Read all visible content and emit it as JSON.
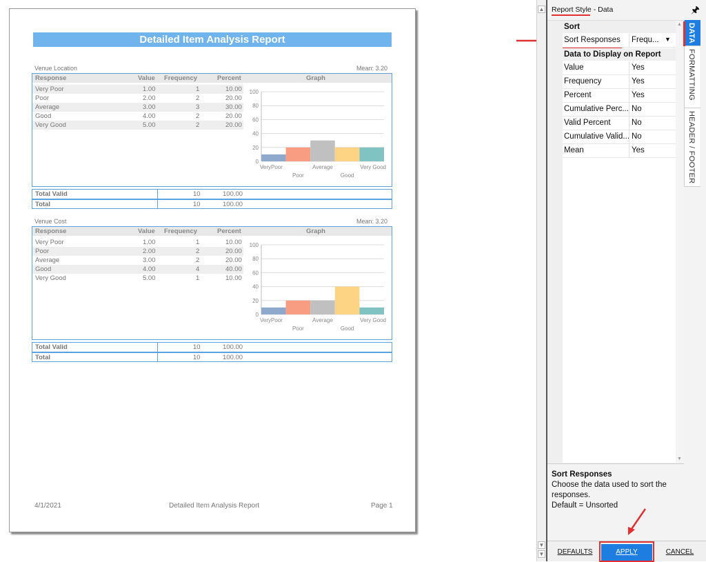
{
  "report": {
    "title": "Detailed Item Analysis Report",
    "columns": [
      "Response",
      "Value",
      "Frequency",
      "Percent",
      "Graph"
    ],
    "sections": [
      {
        "label": "Venue Location",
        "mean": "Mean: 3.20",
        "rows": [
          {
            "response": "Very Poor",
            "value": "1.00",
            "frequency": "1",
            "percent": "10.00"
          },
          {
            "response": "Poor",
            "value": "2.00",
            "frequency": "2",
            "percent": "20.00"
          },
          {
            "response": "Average",
            "value": "3.00",
            "frequency": "3",
            "percent": "30.00"
          },
          {
            "response": "Good",
            "value": "4.00",
            "frequency": "2",
            "percent": "20.00"
          },
          {
            "response": "Very Good",
            "value": "5.00",
            "frequency": "2",
            "percent": "20.00"
          }
        ],
        "total_valid": {
          "label": "Total Valid",
          "frequency": "10",
          "percent": "100.00"
        },
        "total": {
          "label": "Total",
          "frequency": "10",
          "percent": "100.00"
        }
      },
      {
        "label": "Venue Cost",
        "mean": "Mean: 3.20",
        "rows": [
          {
            "response": "Very Poor",
            "value": "1.00",
            "frequency": "1",
            "percent": "10.00"
          },
          {
            "response": "Poor",
            "value": "2.00",
            "frequency": "2",
            "percent": "20.00"
          },
          {
            "response": "Average",
            "value": "3.00",
            "frequency": "2",
            "percent": "20.00"
          },
          {
            "response": "Good",
            "value": "4.00",
            "frequency": "4",
            "percent": "40.00"
          },
          {
            "response": "Very Good",
            "value": "5.00",
            "frequency": "1",
            "percent": "10.00"
          }
        ],
        "total_valid": {
          "label": "Total Valid",
          "frequency": "10",
          "percent": "100.00"
        },
        "total": {
          "label": "Total",
          "frequency": "10",
          "percent": "100.00"
        }
      }
    ],
    "footer": {
      "date": "4/1/2021",
      "title": "Detailed Item Analysis Report",
      "page": "Page 1"
    }
  },
  "chart_data": [
    {
      "type": "bar",
      "categories": [
        "VeryPoor",
        "Poor",
        "Average",
        "Good",
        "Very Good"
      ],
      "values": [
        10,
        20,
        30,
        20,
        20
      ],
      "ylim": [
        0,
        100
      ],
      "yticks": [
        0,
        20,
        40,
        60,
        80,
        100
      ],
      "colors": [
        "#8fa9cc",
        "#f99d82",
        "#c0c0c0",
        "#fdd384",
        "#7fc3c3"
      ],
      "grid": true
    },
    {
      "type": "bar",
      "categories": [
        "VeryPoor",
        "Poor",
        "Average",
        "Good",
        "Very Good"
      ],
      "values": [
        10,
        20,
        20,
        40,
        10
      ],
      "ylim": [
        0,
        100
      ],
      "yticks": [
        0,
        20,
        40,
        60,
        80,
        100
      ],
      "colors": [
        "#8fa9cc",
        "#f99d82",
        "#c0c0c0",
        "#fdd384",
        "#7fc3c3"
      ],
      "grid": true
    }
  ],
  "panel": {
    "title": "Report Style - Data",
    "categories": {
      "sort": "Sort",
      "display": "Data to Display on Report"
    },
    "sort_row": {
      "name": "Sort Responses",
      "value": "Frequ..."
    },
    "display_rows": [
      {
        "name": "Value",
        "value": "Yes"
      },
      {
        "name": "Frequency",
        "value": "Yes"
      },
      {
        "name": "Percent",
        "value": "Yes"
      },
      {
        "name": "Cumulative Perc...",
        "value": "No"
      },
      {
        "name": "Valid Percent",
        "value": "No"
      },
      {
        "name": "Cumulative Valid...",
        "value": "No"
      },
      {
        "name": "Mean",
        "value": "Yes"
      }
    ],
    "tabs": [
      "DATA",
      "FORMATTING",
      "HEADER / FOOTER"
    ],
    "description": {
      "title": "Sort Responses",
      "text": "Choose the data used to sort the responses.",
      "default": "Default = Unsorted"
    },
    "buttons": {
      "defaults": "DEFAULTS",
      "apply": "APPLY",
      "cancel": "CANCEL"
    }
  }
}
